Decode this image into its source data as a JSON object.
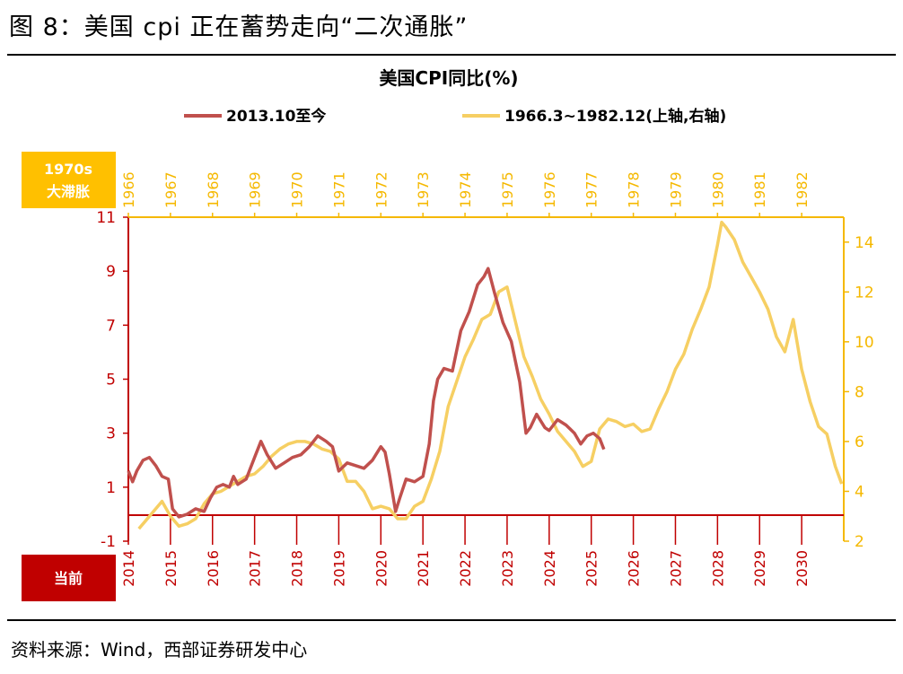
{
  "figure_title": "图 8：美国 cpi 正在蓄势走向“二次通胀”",
  "source": "资料来源：Wind，西部证券研发中心",
  "colors": {
    "current": "#C0504D",
    "seventies": "#F6CF63",
    "axis_red": "#C00000",
    "axis_gold": "#F5B800",
    "box_red": "#C00000",
    "box_gold": "#FFC000"
  },
  "chart_data": {
    "type": "line",
    "title": "美国CPI同比(%)",
    "series": [
      {
        "name": "2013.10至今",
        "axis": "left/bottom",
        "x": [
          2014.0,
          2014.1,
          2014.2,
          2014.35,
          2014.5,
          2014.65,
          2014.8,
          2014.95,
          2015.05,
          2015.2,
          2015.4,
          2015.6,
          2015.8,
          2015.95,
          2016.1,
          2016.25,
          2016.4,
          2016.5,
          2016.6,
          2016.8,
          2017.0,
          2017.15,
          2017.3,
          2017.5,
          2017.7,
          2017.9,
          2018.1,
          2018.3,
          2018.5,
          2018.7,
          2018.85,
          2019.0,
          2019.2,
          2019.4,
          2019.6,
          2019.8,
          2020.0,
          2020.1,
          2020.2,
          2020.35,
          2020.45,
          2020.6,
          2020.8,
          2021.0,
          2021.15,
          2021.25,
          2021.35,
          2021.5,
          2021.7,
          2021.9,
          2022.1,
          2022.3,
          2022.45,
          2022.55,
          2022.7,
          2022.9,
          2023.1,
          2023.3,
          2023.45,
          2023.55,
          2023.7,
          2023.9,
          2024.0,
          2024.2,
          2024.4,
          2024.6,
          2024.75,
          2024.9,
          2025.05,
          2025.2,
          2025.3
        ],
        "y": [
          1.6,
          1.2,
          1.6,
          2.0,
          2.1,
          1.8,
          1.4,
          1.3,
          0.2,
          -0.1,
          0.0,
          0.2,
          0.1,
          0.6,
          1.0,
          1.1,
          1.0,
          1.4,
          1.1,
          1.3,
          2.1,
          2.7,
          2.2,
          1.7,
          1.9,
          2.1,
          2.2,
          2.5,
          2.9,
          2.7,
          2.5,
          1.6,
          1.9,
          1.8,
          1.7,
          2.0,
          2.5,
          2.3,
          1.5,
          0.1,
          0.6,
          1.3,
          1.2,
          1.4,
          2.6,
          4.2,
          5.0,
          5.4,
          5.3,
          6.8,
          7.5,
          8.5,
          8.8,
          9.1,
          8.2,
          7.1,
          6.4,
          4.9,
          3.0,
          3.2,
          3.7,
          3.2,
          3.1,
          3.5,
          3.3,
          3.0,
          2.6,
          2.9,
          3.0,
          2.8,
          2.4
        ]
      },
      {
        "name": "1966.3~1982.12(上轴,右轴)",
        "axis": "right/top",
        "x": [
          1966.25,
          1966.4,
          1966.6,
          1966.8,
          1967.0,
          1967.2,
          1967.4,
          1967.6,
          1967.8,
          1968.0,
          1968.2,
          1968.4,
          1968.6,
          1968.8,
          1969.0,
          1969.2,
          1969.4,
          1969.6,
          1969.8,
          1970.0,
          1970.2,
          1970.4,
          1970.6,
          1970.8,
          1971.0,
          1971.2,
          1971.4,
          1971.6,
          1971.8,
          1972.0,
          1972.2,
          1972.4,
          1972.6,
          1972.8,
          1973.0,
          1973.2,
          1973.4,
          1973.6,
          1973.8,
          1974.0,
          1974.2,
          1974.4,
          1974.6,
          1974.8,
          1975.0,
          1975.2,
          1975.4,
          1975.6,
          1975.8,
          1976.0,
          1976.2,
          1976.4,
          1976.6,
          1976.8,
          1977.0,
          1977.2,
          1977.4,
          1977.6,
          1977.8,
          1978.0,
          1978.2,
          1978.4,
          1978.6,
          1978.8,
          1979.0,
          1979.2,
          1979.4,
          1979.6,
          1979.8,
          1980.0,
          1980.1,
          1980.2,
          1980.4,
          1980.6,
          1980.8,
          1981.0,
          1981.2,
          1981.4,
          1981.6,
          1981.8,
          1982.0,
          1982.2,
          1982.4,
          1982.6,
          1982.8,
          1982.95
        ],
        "y": [
          2.5,
          2.8,
          3.2,
          3.6,
          3.0,
          2.6,
          2.7,
          2.9,
          3.5,
          3.9,
          4.0,
          4.2,
          4.4,
          4.6,
          4.7,
          5.0,
          5.4,
          5.7,
          5.9,
          6.0,
          6.0,
          5.9,
          5.7,
          5.6,
          5.3,
          4.4,
          4.4,
          4.0,
          3.3,
          3.4,
          3.3,
          2.9,
          2.9,
          3.4,
          3.6,
          4.5,
          5.6,
          7.4,
          8.4,
          9.4,
          10.1,
          10.9,
          11.1,
          12.0,
          12.2,
          10.8,
          9.4,
          8.6,
          7.7,
          7.1,
          6.4,
          6.0,
          5.6,
          5.0,
          5.2,
          6.5,
          6.9,
          6.8,
          6.6,
          6.7,
          6.4,
          6.5,
          7.3,
          8.0,
          8.9,
          9.5,
          10.5,
          11.3,
          12.2,
          13.9,
          14.8,
          14.6,
          14.1,
          13.2,
          12.6,
          12.0,
          11.3,
          10.2,
          9.6,
          10.9,
          8.9,
          7.6,
          6.6,
          6.3,
          5.0,
          4.3
        ]
      }
    ],
    "left_axis": {
      "range": [
        -1,
        11
      ],
      "ticks": [
        "11",
        "9",
        "7",
        "5",
        "3",
        "1",
        "-1"
      ]
    },
    "right_axis": {
      "range": [
        2,
        15
      ],
      "ticks": [
        "14",
        "12",
        "10",
        "8",
        "6",
        "4",
        "2"
      ]
    },
    "bottom_axis": {
      "range": [
        2014,
        2031
      ],
      "ticks": [
        "2014",
        "2015",
        "2016",
        "2017",
        "2018",
        "2019",
        "2020",
        "2021",
        "2022",
        "2023",
        "2024",
        "2025",
        "2026",
        "2027",
        "2028",
        "2029",
        "2030"
      ]
    },
    "top_axis": {
      "range": [
        1966,
        1983
      ],
      "ticks": [
        "1966",
        "1967",
        "1968",
        "1969",
        "1970",
        "1971",
        "1972",
        "1973",
        "1974",
        "1975",
        "1976",
        "1977",
        "1978",
        "1979",
        "1980",
        "1981",
        "1982"
      ]
    },
    "top_box_label": [
      "1970s",
      "大滞胀"
    ],
    "bottom_box_label": "当前",
    "legend_placement": "top",
    "grid": false
  }
}
